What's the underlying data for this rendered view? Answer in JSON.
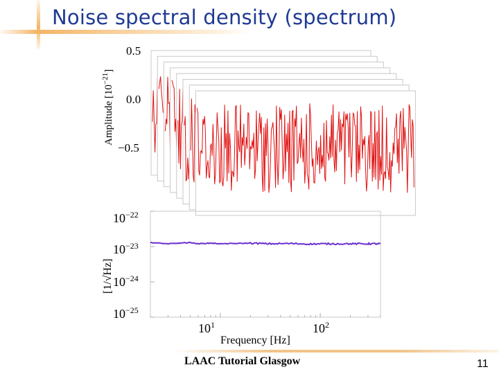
{
  "slide": {
    "title": "Noise spectral density (spectrum)",
    "footer": "LAAC Tutorial Glasgow",
    "page_number": "11"
  },
  "colors": {
    "title": "#1f3a93",
    "accent": "#f3b566",
    "signal": "#e01010",
    "spectrum": "#6a2fd0"
  },
  "chart_data": [
    {
      "type": "line",
      "description_ref": "stacked time-series",
      "ylabel_main": "Amplitude [10",
      "ylabel_exp": "−21",
      "ylabel_close": "]",
      "yticks": [
        "0.5",
        "0.0",
        "−0.5"
      ],
      "ytick_values": [
        0.5,
        0.0,
        -0.5
      ],
      "ylim": [
        -0.75,
        0.55
      ],
      "stack_count": 8
    },
    {
      "type": "line",
      "xscale": "log",
      "yscale": "log",
      "xlabel": "Frequency [Hz]",
      "ylabel": "[1/√Hz]",
      "xlim": [
        2,
        400
      ],
      "ylim": [
        1e-25,
        1e-22
      ],
      "yticks": [
        {
          "base": "10",
          "exp": "−22",
          "value": 1e-22
        },
        {
          "base": "10",
          "exp": "−23",
          "value": 1e-23
        },
        {
          "base": "10",
          "exp": "−24",
          "value": 1e-24
        },
        {
          "base": "10",
          "exp": "−25",
          "value": 1e-25
        }
      ],
      "xticks": [
        {
          "base": "10",
          "exp": "1",
          "value": 10
        },
        {
          "base": "10",
          "exp": "2",
          "value": 100
        }
      ],
      "series": [
        {
          "x": [
            2,
            3,
            4,
            5,
            6,
            8,
            10,
            14,
            20,
            30,
            50,
            80,
            120,
            200,
            300,
            400
          ],
          "y": [
            1.3e-23,
            1.2e-23,
            1.25e-23,
            1.3e-23,
            1.2e-23,
            1.25e-23,
            1.2e-23,
            1.22e-23,
            1.25e-23,
            1.2e-23,
            1.22e-23,
            1.18e-23,
            1.2e-23,
            1.2e-23,
            1.2e-23,
            1.2e-23
          ]
        }
      ]
    }
  ]
}
